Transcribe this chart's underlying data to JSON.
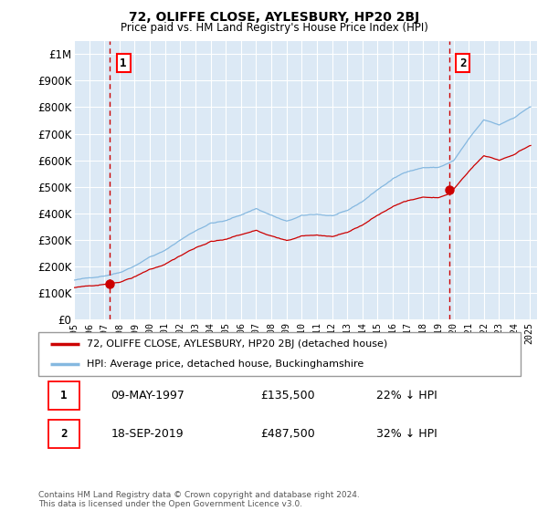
{
  "title": "72, OLIFFE CLOSE, AYLESBURY, HP20 2BJ",
  "subtitle": "Price paid vs. HM Land Registry's House Price Index (HPI)",
  "ytick_values": [
    0,
    100000,
    200000,
    300000,
    400000,
    500000,
    600000,
    700000,
    800000,
    900000,
    1000000
  ],
  "ylim": [
    0,
    1050000
  ],
  "xlim_start": 1995.0,
  "xlim_end": 2025.5,
  "bg_color": "#dce9f5",
  "grid_color": "#ffffff",
  "line1_color": "#cc0000",
  "line2_color": "#85b8e0",
  "point1_x": 1997.36,
  "point1_y": 135500,
  "point2_x": 2019.72,
  "point2_y": 487500,
  "vline1_x": 1997.36,
  "vline2_x": 2019.72,
  "legend_line1": "72, OLIFFE CLOSE, AYLESBURY, HP20 2BJ (detached house)",
  "legend_line2": "HPI: Average price, detached house, Buckinghamshire",
  "table_rows": [
    {
      "num": "1",
      "date": "09-MAY-1997",
      "price": "£135,500",
      "hpi": "22% ↓ HPI"
    },
    {
      "num": "2",
      "date": "18-SEP-2019",
      "price": "£487,500",
      "hpi": "32% ↓ HPI"
    }
  ],
  "footnote": "Contains HM Land Registry data © Crown copyright and database right 2024.\nThis data is licensed under the Open Government Licence v3.0.",
  "xtick_years": [
    1995,
    1996,
    1997,
    1998,
    1999,
    2000,
    2001,
    2002,
    2003,
    2004,
    2005,
    2006,
    2007,
    2008,
    2009,
    2010,
    2011,
    2012,
    2013,
    2014,
    2015,
    2016,
    2017,
    2018,
    2019,
    2020,
    2021,
    2022,
    2023,
    2024,
    2025
  ]
}
